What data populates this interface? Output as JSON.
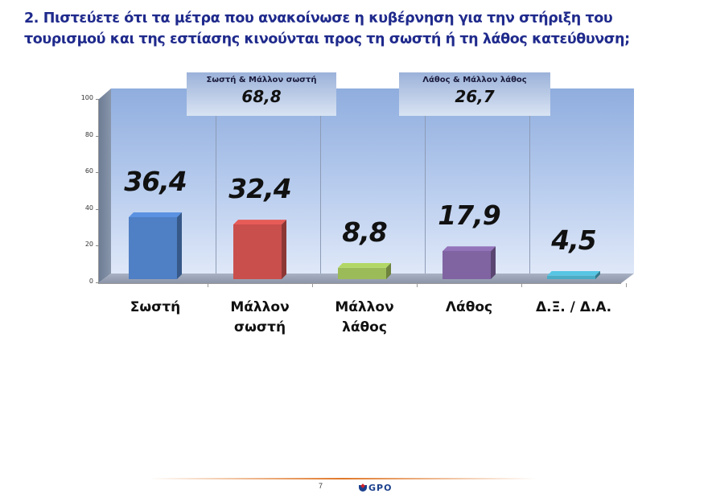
{
  "title": {
    "line1": "2. Πιστεύετε ότι τα μέτρα που ανακοίνωσε η κυβέρνηση για την στήριξη του",
    "line2": "τουρισμού και της εστίασης κινούνται προς τη σωστή ή τη λάθος κατεύθυνση;"
  },
  "chart_data": {
    "type": "bar",
    "title": "2. Πιστεύετε ότι τα μέτρα που ανακοίνωσε η κυβέρνηση για την στήριξη του τουρισμού και της εστίασης κινούνται προς τη σωστή ή τη λάθος κατεύθυνση;",
    "categories": [
      "Σωστή",
      "Μάλλον σωστή",
      "Μάλλον λάθος",
      "Λάθος",
      "Δ.Ξ. / Δ.Α."
    ],
    "category_lines": [
      [
        "Σωστή"
      ],
      [
        "Μάλλον",
        "σωστή"
      ],
      [
        "Μάλλον",
        "λάθος"
      ],
      [
        "Λάθος"
      ],
      [
        "Δ.Ξ. / Δ.Α."
      ]
    ],
    "values": [
      36.4,
      32.4,
      8.8,
      17.9,
      4.5
    ],
    "value_labels": [
      "36,4",
      "32,4",
      "8,8",
      "17,9",
      "4,5"
    ],
    "colors": [
      "#4f7fc4",
      "#c94f4c",
      "#9bbb58",
      "#8064a2",
      "#4bacc6"
    ],
    "xlabel": "",
    "ylabel": "",
    "ylim": [
      0,
      100
    ],
    "yticks": [
      "0",
      "20",
      "40",
      "60",
      "80",
      "100"
    ],
    "grid": false,
    "style": "3d",
    "annotations": [
      {
        "label": "Σωστή & Μάλλον σωστή",
        "value": "68,8"
      },
      {
        "label": "Λάθος & Μάλλον λάθος",
        "value": "26,7"
      }
    ]
  },
  "footer": {
    "page_number": "7",
    "logo_text": "GPO"
  }
}
